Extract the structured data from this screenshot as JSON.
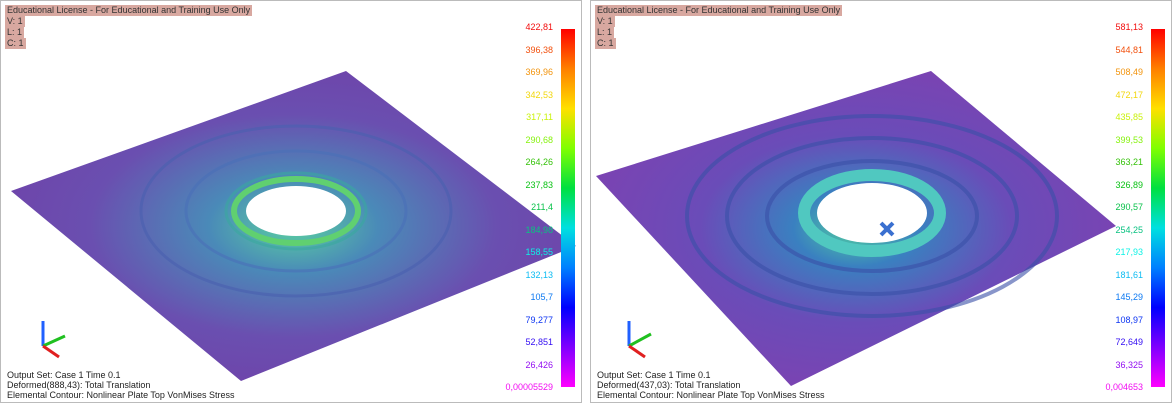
{
  "panels": [
    {
      "header": [
        "Educational License - For Educational and Training Use Only",
        "V: 1",
        "L: 1",
        "C: 1"
      ],
      "legend": [
        "422,81",
        "396,38",
        "369,96",
        "342,53",
        "317,11",
        "290,68",
        "264,26",
        "237,83",
        "211,4",
        "184,98",
        "158,55",
        "132,13",
        "105,7",
        "79,277",
        "52,851",
        "26,426",
        "0,00005529"
      ],
      "footer": [
        "Output Set: Case 1 Time 0.1",
        "Deformed(888,43): Total Translation",
        "Elemental Contour: Nonlinear Plate Top VonMises Stress"
      ]
    },
    {
      "header": [
        "Educational License - For Educational and Training Use Only",
        "V: 1",
        "L: 1",
        "C: 1"
      ],
      "legend": [
        "581,13",
        "544,81",
        "508,49",
        "472,17",
        "435,85",
        "399,53",
        "363,21",
        "326,89",
        "290,57",
        "254,25",
        "217,93",
        "181,61",
        "145,29",
        "108,97",
        "72,649",
        "36,325",
        "0,004653"
      ],
      "footer": [
        "Output Set: Case 1 Time 0.1",
        "Deformed(437,03): Total Translation",
        "Elemental Contour: Nonlinear Plate Top VonMises Stress"
      ]
    }
  ]
}
